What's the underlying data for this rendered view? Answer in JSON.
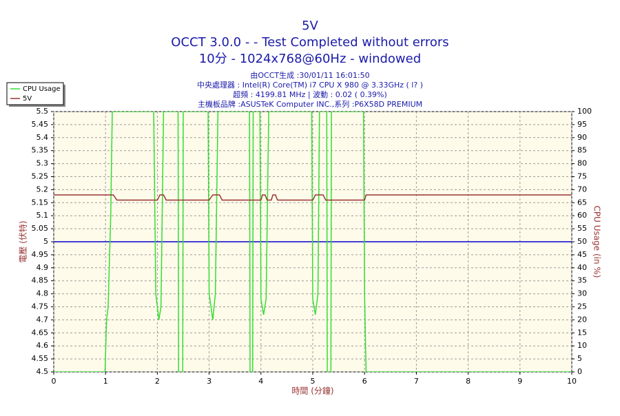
{
  "chart_data": {
    "type": "line",
    "title": [
      "5V",
      "OCCT 3.0.0 -  - Test Completed without errors",
      "10分 - 1024x768@60Hz - windowed"
    ],
    "subtitle": [
      "由OCCT生成 :30/01/11 16:01:50",
      "中央處理器 : Intel(R) Core(TM) i7 CPU X 980 @ 3.33GHz (  l? )",
      "超頻 : 4199.81 MHz | 波動 : 0.02 ( 0.39%)",
      "主機板品牌 :ASUSTeK Computer INC.,系列 :P6X58D PREMIUM"
    ],
    "xlabel": "時間 (分鐘)",
    "ylabel": "電壓 (伏特)",
    "y2label": "CPU Usage (in %)",
    "xlim": [
      0,
      10
    ],
    "xticks": [
      0,
      1,
      2,
      3,
      4,
      5,
      6,
      7,
      8,
      9,
      10
    ],
    "ylim": [
      4.5,
      5.5
    ],
    "yticks": [
      5.5,
      5.45,
      5.4,
      5.35,
      5.3,
      5.25,
      5.2,
      5.15,
      5.1,
      5.05,
      5,
      4.95,
      4.9,
      4.85,
      4.8,
      4.75,
      4.7,
      4.65,
      4.6,
      4.55,
      4.5
    ],
    "y2lim": [
      0,
      100
    ],
    "y2ticks": [
      100,
      95,
      90,
      85,
      80,
      75,
      70,
      65,
      60,
      55,
      50,
      45,
      40,
      35,
      30,
      25,
      20,
      15,
      10,
      5,
      0
    ],
    "grid": true,
    "reference_line": {
      "value": 5,
      "color": "#0000cc"
    },
    "series": [
      {
        "name": "CPU Usage",
        "color": "#33dd33",
        "axis": "y2",
        "x": [
          0,
          0.99,
          1.02,
          1.05,
          1.1,
          1.13,
          1.93,
          1.97,
          2.03,
          2.07,
          2.12,
          2.4,
          2.41,
          2.49,
          2.5,
          2.98,
          3.0,
          3.07,
          3.12,
          3.17,
          3.78,
          3.79,
          3.84,
          3.85,
          3.98,
          4.0,
          4.05,
          4.1,
          4.15,
          4.98,
          5.0,
          5.05,
          5.1,
          5.13,
          5.27,
          5.28,
          5.35,
          5.36,
          5.98,
          6.0,
          6.03,
          10
        ],
        "values": [
          0,
          0,
          20,
          25,
          60,
          100,
          100,
          30,
          20,
          25,
          100,
          100,
          0,
          0,
          100,
          100,
          30,
          20,
          30,
          100,
          100,
          0,
          0,
          100,
          100,
          28,
          22,
          28,
          100,
          100,
          28,
          22,
          30,
          100,
          100,
          0,
          0,
          100,
          100,
          30,
          0,
          0
        ]
      },
      {
        "name": "5V",
        "color": "#993333",
        "x": [
          0,
          1.15,
          1.22,
          2.0,
          2.05,
          2.12,
          2.17,
          3.0,
          3.07,
          3.2,
          3.25,
          4.0,
          4.03,
          4.08,
          4.12,
          4.2,
          4.23,
          4.28,
          4.32,
          5.0,
          5.05,
          5.2,
          5.25,
          6.0,
          6.03,
          10
        ],
        "values": [
          5.18,
          5.18,
          5.16,
          5.16,
          5.18,
          5.18,
          5.16,
          5.16,
          5.18,
          5.18,
          5.16,
          5.16,
          5.18,
          5.18,
          5.16,
          5.16,
          5.18,
          5.18,
          5.16,
          5.16,
          5.18,
          5.18,
          5.16,
          5.16,
          5.18,
          5.18
        ]
      }
    ]
  }
}
